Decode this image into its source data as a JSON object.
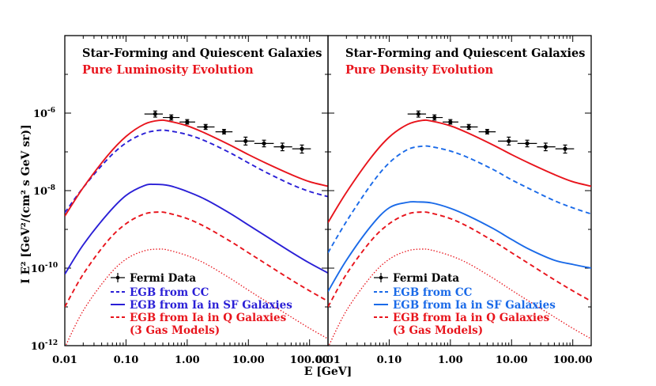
{
  "chart_data": {
    "type": "line",
    "y_axis_label": "I E² [GeV²/(cm² s GeV sr)]",
    "x_axis_label": "E [GeV]",
    "xscale": "log",
    "yscale": "log",
    "xlim": [
      0.01,
      200
    ],
    "ylim": [
      1e-12,
      0.0001
    ],
    "x_tick_labels": [
      "0.01",
      "0.10",
      "1.00",
      "10.00",
      "100.00"
    ],
    "y_tick_labels": [
      {
        "base": "10",
        "exp": "-6"
      },
      {
        "base": "10",
        "exp": "-8"
      },
      {
        "base": "10",
        "exp": "-10"
      },
      {
        "base": "10",
        "exp": "-12"
      }
    ],
    "fermi_data": {
      "x": [
        0.3,
        0.55,
        1.0,
        2.0,
        4.0,
        9.0,
        18.0,
        36.0,
        75.0
      ],
      "y": [
        9.5e-07,
        7.7e-07,
        5.9e-07,
        4.4e-07,
        3.3e-07,
        1.9e-07,
        1.65e-07,
        1.35e-07,
        1.2e-07
      ],
      "x_lo": [
        0.2,
        0.4,
        0.75,
        1.45,
        2.9,
        6.0,
        12.5,
        26.0,
        52.0
      ],
      "x_hi": [
        0.4,
        0.75,
        1.35,
        2.8,
        5.5,
        12.5,
        26.0,
        52.0,
        105.0
      ],
      "y_lo": [
        7.9e-07,
        6.6e-07,
        5.2e-07,
        3.8e-07,
        2.9e-07,
        1.5e-07,
        1.35e-07,
        1.07e-07,
        9.3e-08
      ],
      "y_hi": [
        1.13e-06,
        9e-07,
        6.8e-07,
        5.1e-07,
        3.8e-07,
        2.4e-07,
        2e-07,
        1.68e-07,
        1.5e-07
      ]
    },
    "panels": [
      {
        "title": "Star-Forming and Quiescent Galaxies",
        "subtitle": "Pure Luminosity Evolution",
        "legend": [
          {
            "label": "Fermi Data",
            "color": "#000000",
            "style": "errorbar"
          },
          {
            "label": "EGB from CC",
            "color": "#2a1fd6",
            "style": "dashed"
          },
          {
            "label": "EGB from Ia in SF Galaxies",
            "color": "#2a1fd6",
            "style": "solid"
          },
          {
            "label": "EGB from Ia in Q Galaxies",
            "color": "#e8141c",
            "style": "dashed"
          },
          {
            "label": "(3 Gas Models)",
            "color": "#e8141c",
            "style": "none"
          }
        ],
        "series": [
          {
            "name": "Total (red solid)",
            "color": "#e8141c",
            "style": "solid",
            "x": [
              0.01,
              0.02,
              0.05,
              0.1,
              0.2,
              0.35,
              0.5,
              1,
              2,
              5,
              10,
              20,
              50,
              100,
              200
            ],
            "y": [
              2.2e-09,
              1.2e-08,
              8e-08,
              2.5e-07,
              5.2e-07,
              6.5e-07,
              6.2e-07,
              4.7e-07,
              3e-07,
              1.5e-07,
              8.5e-08,
              5e-08,
              2.6e-08,
              1.7e-08,
              1.3e-08
            ]
          },
          {
            "name": "EGB from CC",
            "color": "#2a1fd6",
            "style": "dashed",
            "x": [
              0.01,
              0.02,
              0.05,
              0.1,
              0.2,
              0.35,
              0.5,
              1,
              2,
              5,
              10,
              20,
              50,
              100,
              200
            ],
            "y": [
              2.7e-09,
              1.2e-08,
              6.5e-08,
              1.7e-07,
              3e-07,
              3.6e-07,
              3.5e-07,
              2.8e-07,
              1.9e-07,
              9.5e-08,
              5.2e-08,
              2.9e-08,
              1.45e-08,
              9.5e-09,
              7e-09
            ]
          },
          {
            "name": "EGB from Ia in SF Galaxies",
            "color": "#2a1fd6",
            "style": "solid",
            "x": [
              0.01,
              0.02,
              0.05,
              0.1,
              0.2,
              0.3,
              0.5,
              1,
              2,
              5,
              10,
              20,
              50,
              100,
              200
            ],
            "y": [
              7e-11,
              4e-10,
              2.5e-09,
              7.5e-09,
              1.35e-08,
              1.45e-08,
              1.35e-08,
              9.5e-09,
              5.9e-09,
              2.6e-09,
              1.3e-09,
              6.5e-10,
              2.6e-10,
              1.35e-10,
              7.5e-11
            ]
          },
          {
            "name": "EGB from Ia in Q Galaxies (upper)",
            "color": "#e8141c",
            "style": "dashed",
            "x": [
              0.01,
              0.02,
              0.05,
              0.1,
              0.2,
              0.35,
              0.5,
              1,
              2,
              5,
              10,
              20,
              50,
              100,
              200
            ],
            "y": [
              1e-11,
              7e-11,
              5e-10,
              1.4e-09,
              2.5e-09,
              2.8e-09,
              2.6e-09,
              1.9e-09,
              1.15e-09,
              5e-10,
              2.5e-10,
              1.25e-10,
              5e-11,
              2.6e-11,
              1.4e-11
            ]
          },
          {
            "name": "EGB from Ia in Q Galaxies (lower)",
            "color": "#e8141c",
            "style": "dotted",
            "x": [
              0.01,
              0.02,
              0.05,
              0.1,
              0.2,
              0.35,
              0.5,
              1,
              2,
              5,
              10,
              20,
              50,
              100,
              200
            ],
            "y": [
              9e-13,
              8e-12,
              6e-11,
              1.7e-10,
              2.8e-10,
              3.1e-10,
              2.9e-10,
              2.1e-10,
              1.3e-10,
              5.5e-11,
              2.7e-11,
              1.35e-11,
              5.5e-12,
              2.8e-12,
              1.5e-12
            ]
          }
        ]
      },
      {
        "title": "Star-Forming and Quiescent Galaxies",
        "subtitle": "Pure Density Evolution",
        "legend": [
          {
            "label": "Fermi Data",
            "color": "#000000",
            "style": "errorbar"
          },
          {
            "label": "EGB from CC",
            "color": "#1a6ae8",
            "style": "dashed"
          },
          {
            "label": "EGB from Ia in SF Galaxies",
            "color": "#1a6ae8",
            "style": "solid"
          },
          {
            "label": "EGB from Ia in Q Galaxies",
            "color": "#e8141c",
            "style": "dashed"
          },
          {
            "label": "(3 Gas Models)",
            "color": "#e8141c",
            "style": "none"
          }
        ],
        "series": [
          {
            "name": "Total (red solid)",
            "color": "#e8141c",
            "style": "solid",
            "x": [
              0.01,
              0.02,
              0.05,
              0.1,
              0.2,
              0.35,
              0.5,
              1,
              2,
              5,
              10,
              20,
              50,
              100,
              200
            ],
            "y": [
              1.5e-09,
              9e-09,
              7e-08,
              2.4e-07,
              5.1e-07,
              6.5e-07,
              6.2e-07,
              4.7e-07,
              3e-07,
              1.5e-07,
              8.5e-08,
              5e-08,
              2.6e-08,
              1.7e-08,
              1.3e-08
            ]
          },
          {
            "name": "EGB from CC",
            "color": "#1a6ae8",
            "style": "dashed",
            "x": [
              0.01,
              0.02,
              0.05,
              0.1,
              0.2,
              0.35,
              0.5,
              1,
              2,
              5,
              10,
              20,
              50,
              100,
              200
            ],
            "y": [
              2.5e-10,
              1.6e-09,
              1.4e-08,
              5.2e-08,
              1.15e-07,
              1.4e-07,
              1.35e-07,
              1.05e-07,
              7e-08,
              3.5e-08,
              1.9e-08,
              1.1e-08,
              5.5e-09,
              3.6e-09,
              2.5e-09
            ]
          },
          {
            "name": "EGB from Ia in SF Galaxies",
            "color": "#1a6ae8",
            "style": "solid",
            "x": [
              0.01,
              0.02,
              0.05,
              0.1,
              0.2,
              0.3,
              0.5,
              1,
              2,
              5,
              10,
              20,
              50,
              100,
              200
            ],
            "y": [
              2.5e-11,
              1.6e-10,
              1.2e-09,
              3.6e-09,
              5e-09,
              5.1e-09,
              4.8e-09,
              3.5e-09,
              2.2e-09,
              1.05e-09,
              5.5e-10,
              3e-10,
              1.6e-10,
              1.25e-10,
              1e-10
            ]
          },
          {
            "name": "EGB from Ia in Q Galaxies (upper)",
            "color": "#e8141c",
            "style": "dashed",
            "x": [
              0.01,
              0.02,
              0.05,
              0.1,
              0.2,
              0.35,
              0.5,
              1,
              2,
              5,
              10,
              20,
              50,
              100,
              200
            ],
            "y": [
              1e-11,
              7e-11,
              5e-10,
              1.4e-09,
              2.5e-09,
              2.8e-09,
              2.6e-09,
              1.9e-09,
              1.15e-09,
              5e-10,
              2.5e-10,
              1.25e-10,
              5e-11,
              2.6e-11,
              1.4e-11
            ]
          },
          {
            "name": "EGB from Ia in Q Galaxies (lower)",
            "color": "#e8141c",
            "style": "dotted",
            "x": [
              0.01,
              0.02,
              0.05,
              0.1,
              0.2,
              0.35,
              0.5,
              1,
              2,
              5,
              10,
              20,
              50,
              100,
              200
            ],
            "y": [
              9e-13,
              8e-12,
              6e-11,
              1.7e-10,
              2.8e-10,
              3.1e-10,
              2.9e-10,
              2.1e-10,
              1.3e-10,
              5.5e-11,
              2.7e-11,
              1.35e-11,
              5.5e-12,
              2.8e-12,
              1.5e-12
            ]
          }
        ]
      }
    ]
  }
}
